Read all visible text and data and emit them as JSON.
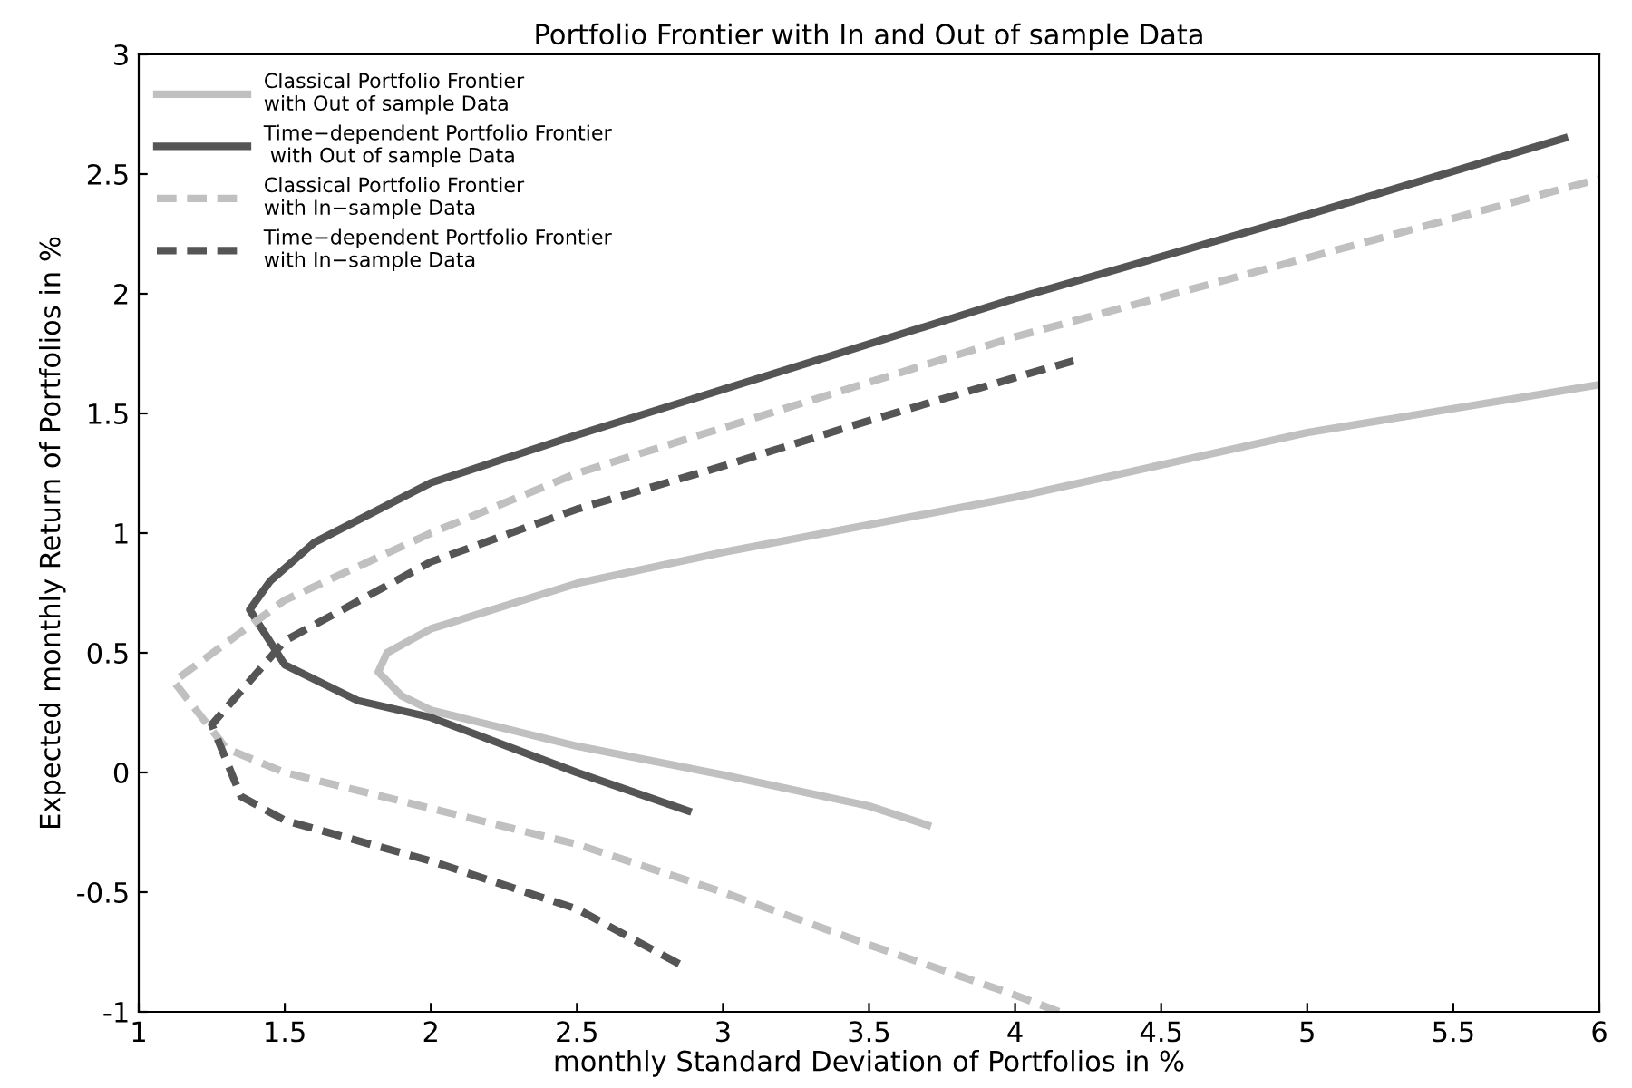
{
  "chart_data": {
    "type": "line",
    "title": "Portfolio Frontier with In and Out of sample Data",
    "xlabel": "monthly Standard Deviation of Portfolios in %",
    "ylabel": "Expected monthly Return of Portfolios in %",
    "xlim": [
      1,
      6
    ],
    "ylim": [
      -1,
      3
    ],
    "xticks": [
      1,
      1.5,
      2,
      2.5,
      3,
      3.5,
      4,
      4.5,
      5,
      5.5,
      6
    ],
    "yticks": [
      -1,
      -0.5,
      0,
      0.5,
      1,
      1.5,
      2,
      2.5,
      3
    ],
    "grid": false,
    "legend": "top left",
    "marker": "none",
    "series": [
      {
        "name": "Classical Portfolio Frontier\nwith Out of sample Data",
        "color": "#c0c0c0",
        "line_style": "solid",
        "x": [
          3.7,
          3.5,
          3.0,
          2.5,
          2.0,
          1.9,
          1.82,
          1.85,
          2.0,
          2.5,
          3.0,
          4.0,
          5.0,
          6.0
        ],
        "values": [
          -0.22,
          -0.14,
          -0.01,
          0.11,
          0.26,
          0.32,
          0.42,
          0.5,
          0.6,
          0.79,
          0.92,
          1.15,
          1.42,
          1.62
        ]
      },
      {
        "name": "Time−dependent Portfolio Frontier\n with Out of sample Data",
        "color": "#555555",
        "line_style": "solid",
        "x": [
          2.88,
          2.5,
          2.0,
          1.75,
          1.5,
          1.38,
          1.45,
          1.6,
          2.0,
          2.5,
          3.0,
          4.0,
          5.0,
          5.88
        ],
        "values": [
          -0.16,
          0.0,
          0.23,
          0.3,
          0.45,
          0.68,
          0.8,
          0.96,
          1.21,
          1.41,
          1.6,
          1.98,
          2.33,
          2.65
        ]
      },
      {
        "name": "Classical Portfolio Frontier\nwith In−sample Data",
        "color": "#c0c0c0",
        "line_style": "dashed",
        "x": [
          4.15,
          4.0,
          3.5,
          3.0,
          2.5,
          2.0,
          1.5,
          1.3,
          1.12,
          1.5,
          2.0,
          2.5,
          3.0,
          4.0,
          5.0,
          6.0
        ],
        "values": [
          -1.0,
          -0.93,
          -0.72,
          -0.5,
          -0.3,
          -0.15,
          0.0,
          0.1,
          0.38,
          0.72,
          1.0,
          1.25,
          1.44,
          1.82,
          2.15,
          2.48
        ]
      },
      {
        "name": "Time−dependent Portfolio Frontier\nwith In−sample Data",
        "color": "#555555",
        "line_style": "dashed",
        "x": [
          2.85,
          2.5,
          2.0,
          1.5,
          1.35,
          1.25,
          1.5,
          2.0,
          2.5,
          3.0,
          3.5,
          4.0,
          4.2
        ],
        "values": [
          -0.8,
          -0.57,
          -0.37,
          -0.2,
          -0.1,
          0.2,
          0.55,
          0.88,
          1.1,
          1.28,
          1.47,
          1.65,
          1.72
        ]
      }
    ]
  }
}
